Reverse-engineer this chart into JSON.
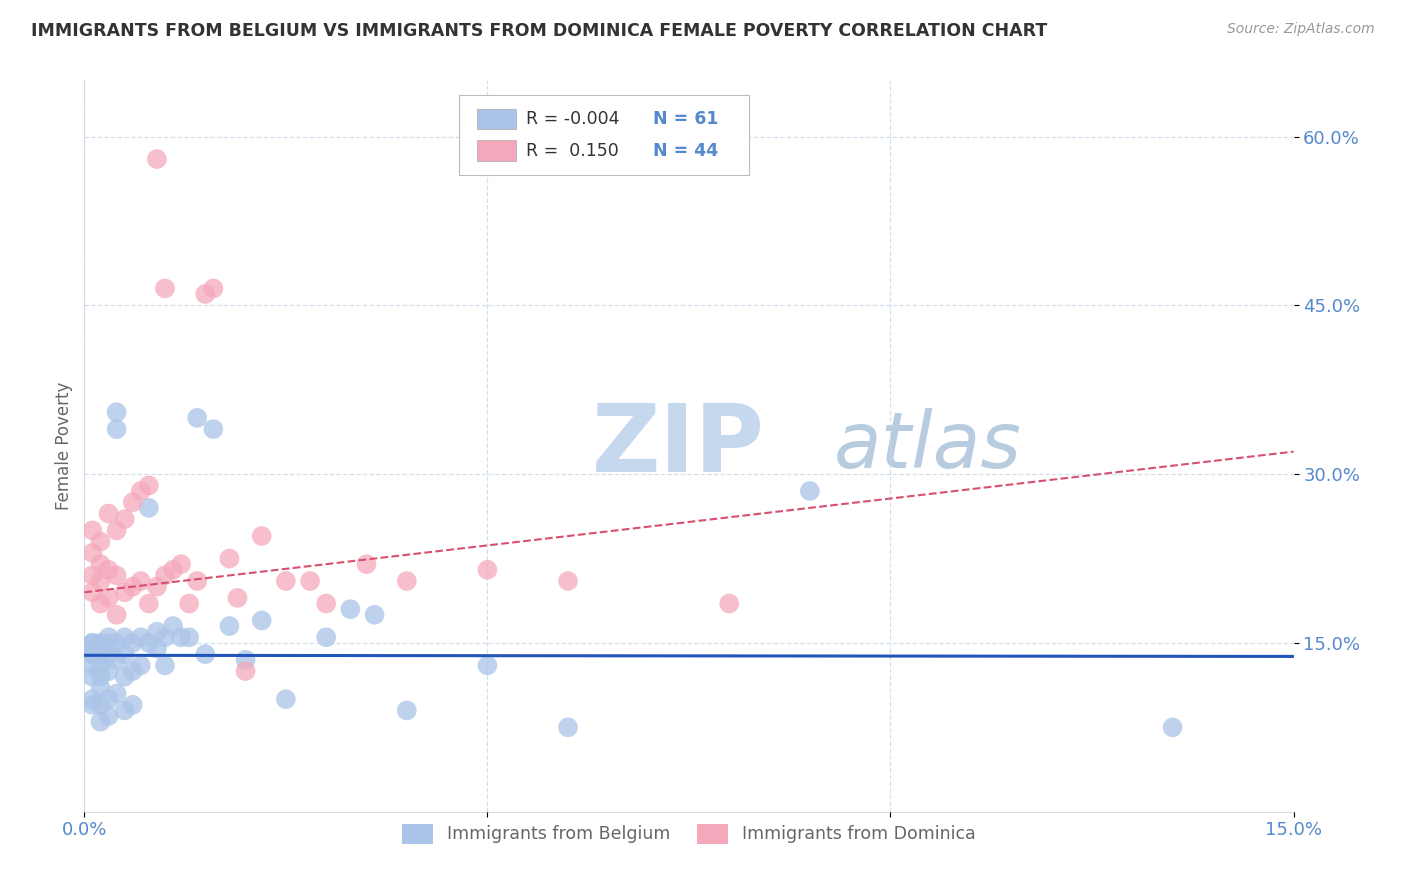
{
  "title": "IMMIGRANTS FROM BELGIUM VS IMMIGRANTS FROM DOMINICA FEMALE POVERTY CORRELATION CHART",
  "source": "Source: ZipAtlas.com",
  "ylabel": "Female Poverty",
  "xmin": 0.0,
  "xmax": 0.15,
  "ymin": 0.0,
  "ymax": 0.65,
  "belgium_color": "#aac4e8",
  "dominica_color": "#f5a8bc",
  "belgium_line_color": "#2255bb",
  "dominica_line_color": "#d85070",
  "belgium_R": -0.004,
  "belgium_N": 61,
  "dominica_R": 0.15,
  "dominica_N": 44,
  "watermark_zip": "ZIP",
  "watermark_atlas": "atlas",
  "watermark_color_zip": "#c5d8ee",
  "watermark_color_atlas": "#b8cce0",
  "belgium_line_y0": 0.139,
  "belgium_line_y1": 0.138,
  "dominica_line_y0": 0.195,
  "dominica_line_y1": 0.32,
  "ytick_vals": [
    0.15,
    0.3,
    0.45,
    0.6
  ],
  "ytick_labels": [
    "15.0%",
    "30.0%",
    "45.0%",
    "60.0%"
  ],
  "grid_color": "#c8d8e8",
  "legend_box_color": "#aaaaaa",
  "tick_color": "#5588cc"
}
